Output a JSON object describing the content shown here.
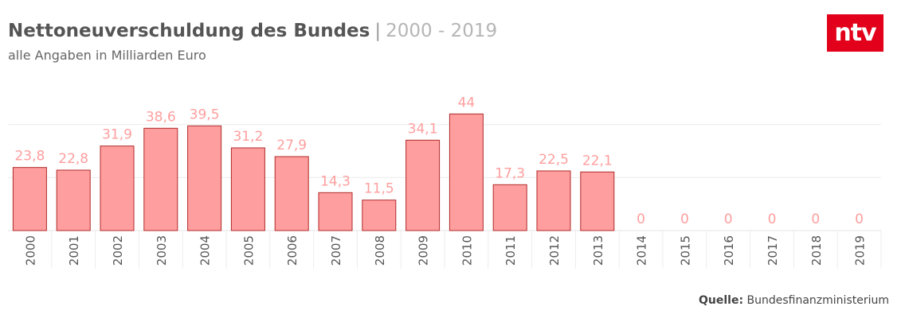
{
  "header": {
    "title": "Nettoneuverschuldung des Bundes",
    "separator": "|",
    "range": "2000 - 2019",
    "subtitle": "alle Angaben in Milliarden Euro"
  },
  "logo": {
    "text": "ntv",
    "color": "#e2001a"
  },
  "source": {
    "label": "Quelle:",
    "value": "Bundesfinanzministerium"
  },
  "colors": {
    "bar_fill": "#ff9e9e",
    "bar_stroke": "#b02a2a",
    "value_label": "#ff9e9e",
    "grid": "#ececec",
    "axis_text": "#555555"
  },
  "chart_data": {
    "type": "bar",
    "categories": [
      "2000",
      "2001",
      "2002",
      "2003",
      "2004",
      "2005",
      "2006",
      "2007",
      "2008",
      "2009",
      "2010",
      "2011",
      "2012",
      "2013",
      "2014",
      "2015",
      "2016",
      "2017",
      "2018",
      "2019"
    ],
    "values": [
      23.8,
      22.8,
      31.9,
      38.6,
      39.5,
      31.2,
      27.9,
      14.3,
      11.5,
      34.1,
      44,
      17.3,
      22.5,
      22.1,
      0,
      0,
      0,
      0,
      0,
      0
    ],
    "value_labels": [
      "23,8",
      "22,8",
      "31,9",
      "38,6",
      "39,5",
      "31,2",
      "27,9",
      "14,3",
      "11,5",
      "34,1",
      "44",
      "17,3",
      "22,5",
      "22,1",
      "0",
      "0",
      "0",
      "0",
      "0",
      "0"
    ],
    "ylim": [
      0,
      60
    ],
    "grid": true,
    "xlabel": "",
    "ylabel": ""
  }
}
